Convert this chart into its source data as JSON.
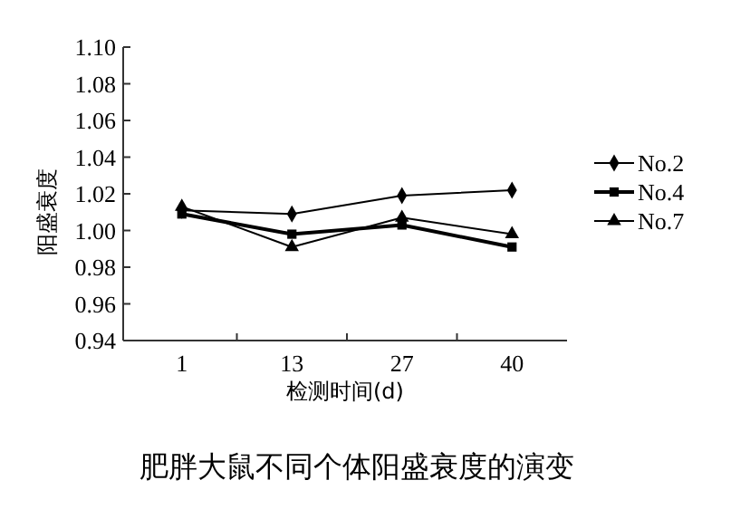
{
  "chart_data": {
    "type": "line",
    "title": "肥胖大鼠不同个体阳盛衰度的演变",
    "xlabel": "检测时间(d)",
    "ylabel": "阳盛衰度",
    "categories": [
      "1",
      "13",
      "27",
      "40"
    ],
    "series": [
      {
        "name": "No.2",
        "color": "#000000",
        "marker": "diamond",
        "values": [
          1.011,
          1.009,
          1.019,
          1.022
        ]
      },
      {
        "name": "No.4",
        "color": "#000000",
        "marker": "square",
        "values": [
          1.009,
          0.998,
          1.003,
          0.991
        ]
      },
      {
        "name": "No.7",
        "color": "#000000",
        "marker": "triangle",
        "values": [
          1.013,
          0.991,
          1.007,
          0.998
        ]
      }
    ],
    "ylim": [
      0.94,
      1.1
    ],
    "yticks": [
      {
        "value": 0.94,
        "label": "0.94"
      },
      {
        "value": 0.96,
        "label": "0.96"
      },
      {
        "value": 0.98,
        "label": "0.98"
      },
      {
        "value": 1.0,
        "label": "1.00"
      },
      {
        "value": 1.02,
        "label": "1.02"
      },
      {
        "value": 1.04,
        "label": "1.04"
      },
      {
        "value": 1.06,
        "label": "1.06"
      },
      {
        "value": 1.08,
        "label": "1.08"
      },
      {
        "value": 1.1,
        "label": "1.10"
      }
    ],
    "grid": false,
    "legend": "right",
    "line_style": "solid"
  }
}
